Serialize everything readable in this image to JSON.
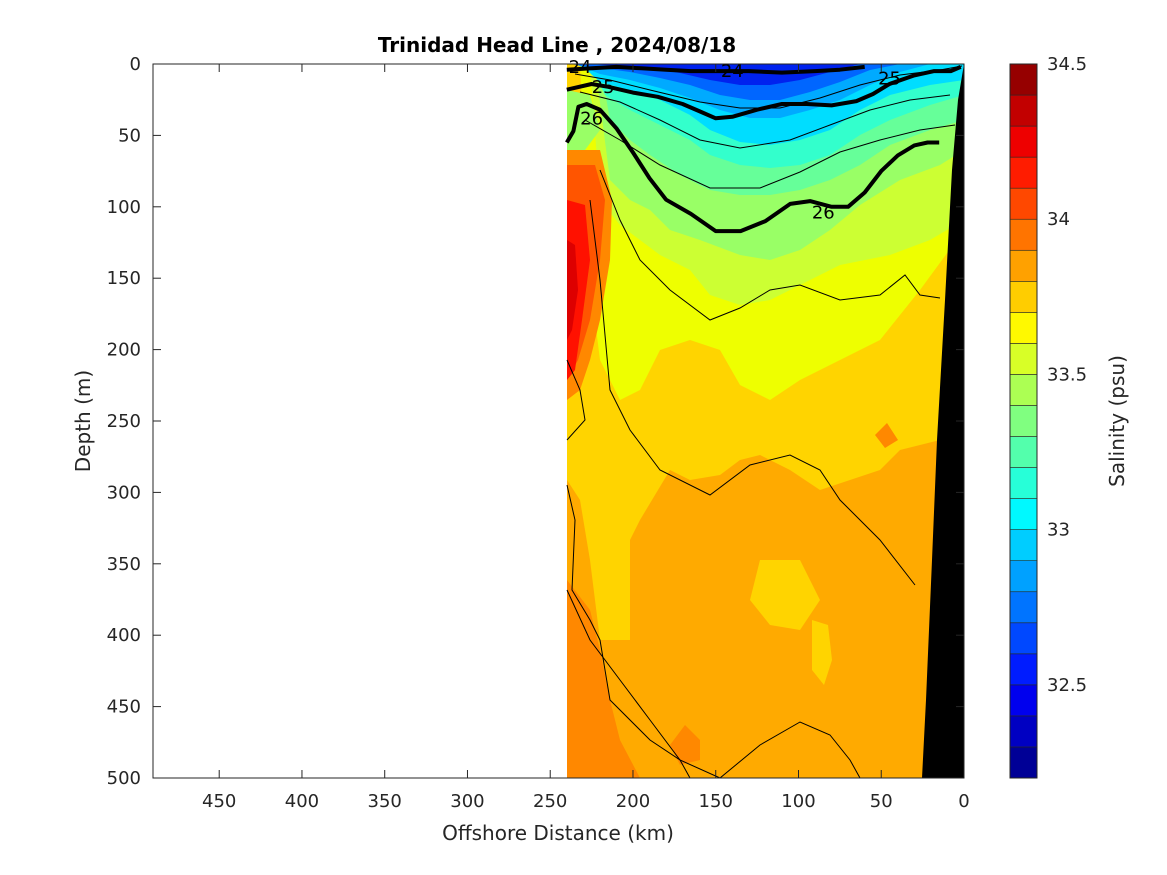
{
  "chart_data": {
    "type": "heatmap",
    "title": "Trinidad Head Line , 2024/08/18",
    "xlabel": "Offshore Distance (km)",
    "ylabel": "Depth (m)",
    "colorbar_label": "Salinity (psu)",
    "xlim": [
      490,
      0
    ],
    "ylim": [
      500,
      0
    ],
    "x_ticks": [
      "450",
      "400",
      "350",
      "300",
      "250",
      "200",
      "150",
      "100",
      "50",
      "0"
    ],
    "x_tick_values": [
      450,
      400,
      350,
      300,
      250,
      200,
      150,
      100,
      50,
      0
    ],
    "y_ticks": [
      "0",
      "50",
      "100",
      "150",
      "200",
      "250",
      "300",
      "350",
      "400",
      "450",
      "500"
    ],
    "y_tick_values": [
      0,
      50,
      100,
      150,
      200,
      250,
      300,
      350,
      400,
      450,
      500
    ],
    "colorbar_ticks": [
      "34.5",
      "34",
      "33.5",
      "33",
      "32.5"
    ],
    "colorbar_tick_values": [
      34.5,
      34.0,
      33.5,
      33.0,
      32.5
    ],
    "clim": [
      32.2,
      34.5
    ],
    "colormap": "jet",
    "data_extent_km": [
      240,
      0
    ],
    "density_contours": [
      {
        "label": "24",
        "x": [
          240,
          225,
          210,
          195,
          180,
          165,
          150,
          130,
          110,
          90,
          75,
          60
        ],
        "y": [
          4,
          3,
          2,
          3,
          4,
          5,
          5,
          5,
          6,
          5,
          4,
          2
        ]
      },
      {
        "label": "25",
        "x": [
          240,
          225,
          215,
          200,
          185,
          170,
          160,
          150,
          140,
          125,
          110,
          95,
          80,
          65,
          55,
          45,
          30,
          18,
          8,
          2
        ],
        "y": [
          18,
          14,
          16,
          20,
          23,
          28,
          33,
          38,
          37,
          32,
          28,
          28,
          29,
          26,
          21,
          14,
          8,
          5,
          5,
          2
        ]
      },
      {
        "label": "26",
        "x": [
          240,
          236,
          233,
          228,
          220,
          210,
          200,
          190,
          180,
          165,
          150,
          135,
          120,
          105,
          93,
          80,
          70,
          60,
          50,
          40,
          30,
          22,
          15
        ],
        "y": [
          55,
          47,
          30,
          28,
          32,
          45,
          62,
          80,
          95,
          105,
          117,
          117,
          110,
          98,
          96,
          100,
          100,
          90,
          75,
          64,
          57,
          55,
          55
        ]
      }
    ],
    "labeled_values": [
      "24",
      "24",
      "25",
      "25",
      "26",
      "26"
    ]
  }
}
